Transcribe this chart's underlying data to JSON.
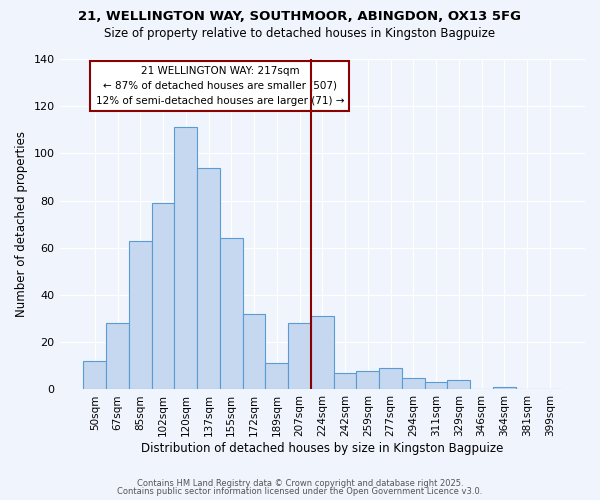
{
  "title1": "21, WELLINGTON WAY, SOUTHMOOR, ABINGDON, OX13 5FG",
  "title2": "Size of property relative to detached houses in Kingston Bagpuize",
  "xlabel": "Distribution of detached houses by size in Kingston Bagpuize",
  "ylabel": "Number of detached properties",
  "categories": [
    "50sqm",
    "67sqm",
    "85sqm",
    "102sqm",
    "120sqm",
    "137sqm",
    "155sqm",
    "172sqm",
    "189sqm",
    "207sqm",
    "224sqm",
    "242sqm",
    "259sqm",
    "277sqm",
    "294sqm",
    "311sqm",
    "329sqm",
    "346sqm",
    "364sqm",
    "381sqm",
    "399sqm"
  ],
  "values": [
    12,
    28,
    63,
    79,
    111,
    94,
    64,
    32,
    11,
    28,
    31,
    7,
    8,
    9,
    5,
    3,
    4,
    0,
    1,
    0,
    0
  ],
  "bar_color": "#c5d8ef",
  "bar_edge_color": "#5b9bd5",
  "subject_line_color": "#8b0000",
  "annotation_title": "21 WELLINGTON WAY: 217sqm",
  "annotation_line1": "← 87% of detached houses are smaller (507)",
  "annotation_line2": "12% of semi-detached houses are larger (71) →",
  "annotation_box_edge": "#8b0000",
  "footer1": "Contains HM Land Registry data © Crown copyright and database right 2025.",
  "footer2": "Contains public sector information licensed under the Open Government Licence v3.0.",
  "ylim": [
    0,
    140
  ],
  "yticks": [
    0,
    20,
    40,
    60,
    80,
    100,
    120,
    140
  ],
  "background_color": "#f0f4fc",
  "plot_bg_color": "#f0f4fc",
  "grid_color": "#ffffff"
}
